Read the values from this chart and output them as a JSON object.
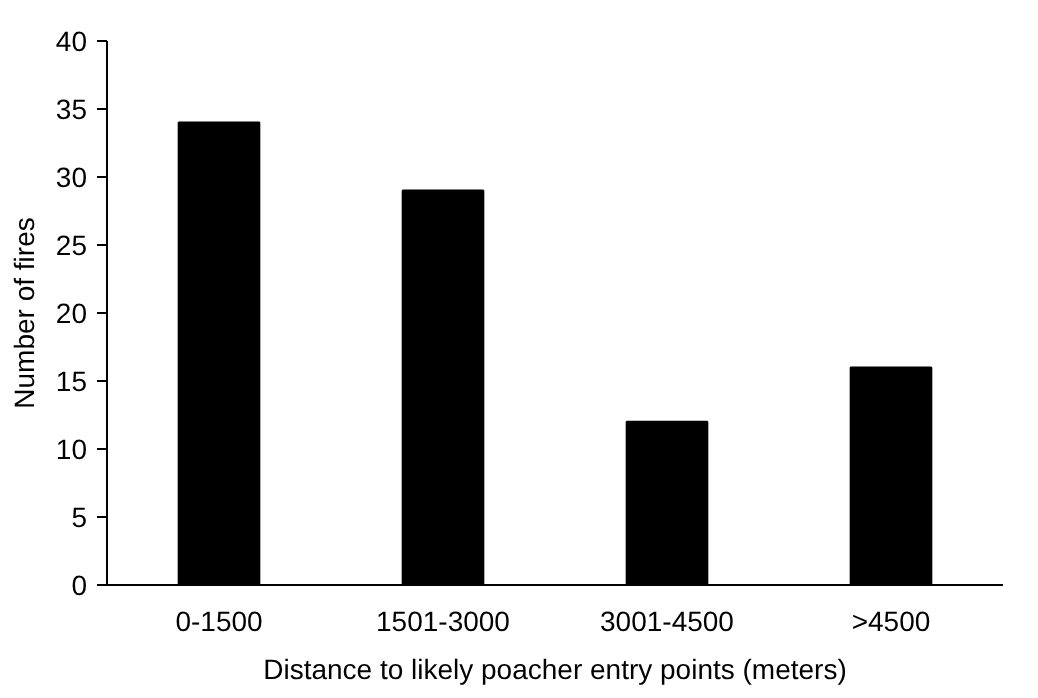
{
  "chart_data": {
    "type": "bar",
    "xlabel": "Distance to likely poacher entry points (meters)",
    "ylabel": "Number of fires",
    "categories": [
      "0-1500",
      "1501-3000",
      "3001-4500",
      ">4500"
    ],
    "values": [
      34,
      29,
      12,
      16
    ],
    "color": "#000000",
    "ylim": [
      0,
      40
    ],
    "yticks": [
      0,
      5,
      10,
      15,
      20,
      25,
      30,
      35,
      40
    ],
    "grid": false
  }
}
